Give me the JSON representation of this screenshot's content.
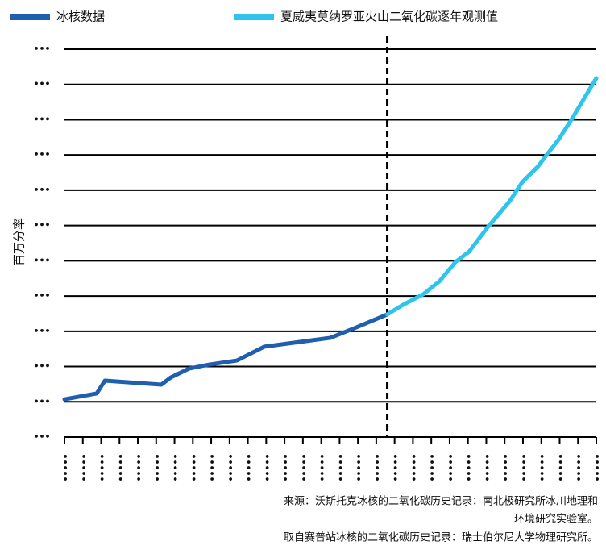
{
  "chart_data": {
    "type": "line",
    "y_label": "百万分率",
    "series": [
      {
        "name": "冰核数据",
        "color": "#1f5fad",
        "x": [
          1870,
          1878.8,
          1881,
          1896.4,
          1899,
          1904,
          1909.5,
          1917,
          1924.5,
          1942.5,
          1949,
          1958
        ],
        "values": [
          275.0,
          277.3,
          282.4,
          280.8,
          283.7,
          287.2,
          288.8,
          290.4,
          295.9,
          299.4,
          303.2,
          308.7
        ]
      },
      {
        "name": "夏威夷莫纳罗亚火山二氧化碳逐年观测值",
        "color": "#2ec4ec",
        "x": [
          1958,
          1962.3,
          1967.8,
          1972.2,
          1976.6,
          1980.3,
          1985.3,
          1991.3,
          1994.8,
          1999.2,
          2001.8,
          2004.7,
          2008,
          2011.7,
          2015
        ],
        "values": [
          308.7,
          312.5,
          316.7,
          321.8,
          329.5,
          333.6,
          343.2,
          353.5,
          361.2,
          367.6,
          372.7,
          378.1,
          385.5,
          394.5,
          402.5
        ]
      }
    ],
    "vline": 1958,
    "xlim": [
      1870,
      2015
    ],
    "xticks": [
      {
        "value": 1870,
        "label": "•••••"
      },
      {
        "value": 1875,
        "label": "•••••"
      },
      {
        "value": 1880,
        "label": "•••••"
      },
      {
        "value": 1885,
        "label": "•••••"
      },
      {
        "value": 1890,
        "label": "•••••"
      },
      {
        "value": 1895,
        "label": "•••••"
      },
      {
        "value": 1900,
        "label": "•••••"
      },
      {
        "value": 1905,
        "label": "•••••"
      },
      {
        "value": 1910,
        "label": "•••••"
      },
      {
        "value": 1915,
        "label": "•••••"
      },
      {
        "value": 1920,
        "label": "•••••"
      },
      {
        "value": 1925,
        "label": "•••••"
      },
      {
        "value": 1930,
        "label": "•••••"
      },
      {
        "value": 1935,
        "label": "•••••"
      },
      {
        "value": 1940,
        "label": "•••••"
      },
      {
        "value": 1945,
        "label": "•••••"
      },
      {
        "value": 1950,
        "label": "•••••"
      },
      {
        "value": 1955,
        "label": "•••••"
      },
      {
        "value": 1960,
        "label": "•••••"
      },
      {
        "value": 1965,
        "label": "•••••"
      },
      {
        "value": 1970,
        "label": "•••••"
      },
      {
        "value": 1975,
        "label": "•••••"
      },
      {
        "value": 1980,
        "label": "•••••"
      },
      {
        "value": 1985,
        "label": "•••••"
      },
      {
        "value": 1990,
        "label": "•••••"
      },
      {
        "value": 1995,
        "label": "•••••"
      },
      {
        "value": 2000,
        "label": "•••••"
      },
      {
        "value": 2005,
        "label": "•••••"
      },
      {
        "value": 2010,
        "label": "•••••"
      },
      {
        "value": 2015,
        "label": "•••••"
      }
    ],
    "ylim": [
      260,
      414
    ],
    "yticks": [
      {
        "value": 260,
        "label": "•••"
      },
      {
        "value": 274,
        "label": "•••"
      },
      {
        "value": 288,
        "label": "•••"
      },
      {
        "value": 302,
        "label": "•••"
      },
      {
        "value": 316,
        "label": "•••"
      },
      {
        "value": 330,
        "label": "•••"
      },
      {
        "value": 344,
        "label": "•••"
      },
      {
        "value": 358,
        "label": "•••"
      },
      {
        "value": 372,
        "label": "•••"
      },
      {
        "value": 386,
        "label": "•••"
      },
      {
        "value": 400,
        "label": "•••"
      },
      {
        "value": 414,
        "label": "•••"
      }
    ],
    "grid": true,
    "legend": "top",
    "source": [
      "来源：沃斯托克冰核的二氧化碳历史记录：南北极研究所冰川地理和",
      "环境研究实验室。",
      "取自赛普站冰核的二氧化碳历史记录：瑞士伯尔尼大学物理研究所。"
    ]
  }
}
